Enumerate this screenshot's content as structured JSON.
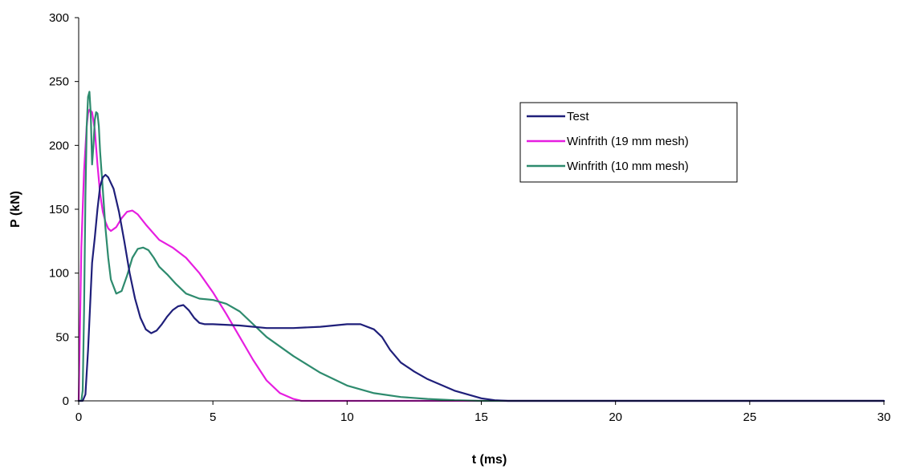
{
  "chart_data": {
    "type": "line",
    "title": "",
    "xlabel": "t (ms)",
    "ylabel": "P (kN)",
    "xlim": [
      0,
      30
    ],
    "ylim": [
      0,
      300
    ],
    "xticks": [
      0,
      5,
      10,
      15,
      20,
      25,
      30
    ],
    "yticks": [
      0,
      50,
      100,
      150,
      200,
      250,
      300
    ],
    "grid": false,
    "legend_position": "top-right",
    "series": [
      {
        "name": "Test",
        "color": "#1f1f7a",
        "x": [
          0,
          0.15,
          0.25,
          0.35,
          0.45,
          0.5,
          0.55,
          0.6,
          0.7,
          0.8,
          0.9,
          1.0,
          1.1,
          1.3,
          1.5,
          1.7,
          1.9,
          2.1,
          2.3,
          2.5,
          2.7,
          2.9,
          3.1,
          3.3,
          3.5,
          3.7,
          3.9,
          4.1,
          4.3,
          4.5,
          4.7,
          5,
          6,
          7,
          8,
          9,
          10,
          10.5,
          11,
          11.3,
          11.6,
          12,
          12.5,
          13,
          14,
          15,
          15.5,
          16,
          18,
          20,
          25,
          30
        ],
        "y": [
          0,
          0,
          5,
          40,
          85,
          108,
          118,
          128,
          150,
          168,
          175,
          177,
          175,
          166,
          148,
          125,
          100,
          80,
          65,
          56,
          53,
          55,
          60,
          66,
          71,
          74,
          75,
          71,
          65,
          61,
          60,
          60,
          59,
          57,
          57,
          58,
          60,
          60,
          56,
          50,
          40,
          30,
          23,
          17,
          8,
          2,
          0.5,
          0,
          0,
          0,
          0,
          0
        ]
      },
      {
        "name": "Winfrith (19 mm mesh)",
        "color": "#e61ee0",
        "x": [
          0,
          0.05,
          0.1,
          0.2,
          0.3,
          0.35,
          0.4,
          0.5,
          0.6,
          0.7,
          0.8,
          0.9,
          1.0,
          1.1,
          1.2,
          1.4,
          1.6,
          1.8,
          2.0,
          2.2,
          2.5,
          3.0,
          3.5,
          4.0,
          4.5,
          5.0,
          5.5,
          6.0,
          6.5,
          7.0,
          7.5,
          8.0,
          8.3,
          9,
          10,
          15,
          20,
          30
        ],
        "y": [
          0,
          60,
          120,
          180,
          215,
          225,
          228,
          226,
          212,
          185,
          162,
          148,
          140,
          135,
          133,
          136,
          143,
          148,
          149,
          146,
          138,
          126,
          120,
          112,
          100,
          85,
          68,
          50,
          32,
          16,
          6,
          1.5,
          0,
          0,
          0,
          0,
          0,
          0
        ]
      },
      {
        "name": "Winfrith (10 mm mesh)",
        "color": "#2e8b6e",
        "x": [
          0,
          0.1,
          0.15,
          0.2,
          0.25,
          0.3,
          0.35,
          0.4,
          0.45,
          0.5,
          0.55,
          0.6,
          0.65,
          0.7,
          0.75,
          0.8,
          0.9,
          1.0,
          1.1,
          1.2,
          1.4,
          1.6,
          1.8,
          2.0,
          2.2,
          2.4,
          2.6,
          2.8,
          3.0,
          3.3,
          3.6,
          4.0,
          4.5,
          5.0,
          5.5,
          6.0,
          7,
          8,
          9,
          10,
          11,
          12,
          13,
          14,
          15,
          16,
          20,
          30
        ],
        "y": [
          0,
          0,
          8,
          70,
          160,
          215,
          238,
          242,
          225,
          185,
          200,
          220,
          226,
          225,
          215,
          195,
          165,
          135,
          112,
          95,
          84,
          86,
          98,
          112,
          119,
          120,
          118,
          112,
          105,
          99,
          92,
          84,
          80,
          79,
          76,
          70,
          50,
          35,
          22,
          12,
          6,
          3,
          1.5,
          0.5,
          0,
          0,
          0,
          0
        ]
      }
    ]
  }
}
